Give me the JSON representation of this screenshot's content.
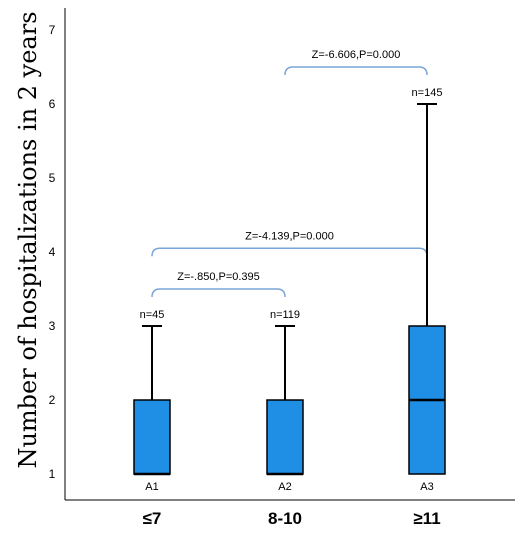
{
  "chart_data": {
    "type": "box",
    "ylabel": "Number of hospitalizations in 2 years",
    "xlabel": "",
    "ylim": [
      0.6,
      7.4
    ],
    "yticks": [
      1,
      2,
      3,
      4,
      5,
      6,
      7
    ],
    "box_color": "#1f8fe6",
    "bracket_color": "#7aa5d8",
    "categories": [
      "≤7",
      "8-10",
      "≥11"
    ],
    "groups": [
      {
        "category": "≤7",
        "label": "A1",
        "n_label": "n=45",
        "min": 1,
        "q1": 1,
        "median": 1,
        "q3": 2,
        "max": 3
      },
      {
        "category": "8-10",
        "label": "A2",
        "n_label": "n=119",
        "min": 1,
        "q1": 1,
        "median": 1,
        "q3": 2,
        "max": 3
      },
      {
        "category": "≥11",
        "label": "A3",
        "n_label": "n=145",
        "min": 1,
        "q1": 1,
        "median": 2,
        "q3": 3,
        "max": 6
      }
    ],
    "comparisons": [
      {
        "from": 0,
        "to": 1,
        "label": "Z=-.850,P=0.395",
        "level": 3.5
      },
      {
        "from": 0,
        "to": 2,
        "label": "Z=-4.139,P=0.000",
        "level": 4.05
      },
      {
        "from": 1,
        "to": 2,
        "label": "Z=-6.606,P=0.000",
        "level": 6.5
      }
    ]
  }
}
